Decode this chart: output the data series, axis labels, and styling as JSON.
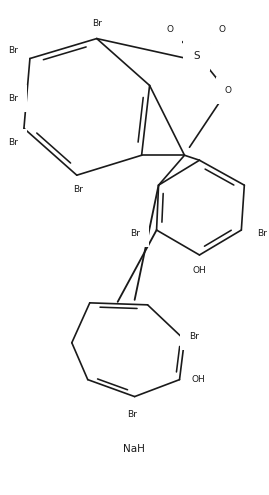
{
  "bg_color": "#ffffff",
  "line_color": "#1a1a1a",
  "line_width": 1.2,
  "font_size": 6.5,
  "fig_width": 2.69,
  "fig_height": 4.95,
  "dpi": 100,
  "xlim": [
    0,
    269
  ],
  "ylim": [
    0,
    495
  ]
}
